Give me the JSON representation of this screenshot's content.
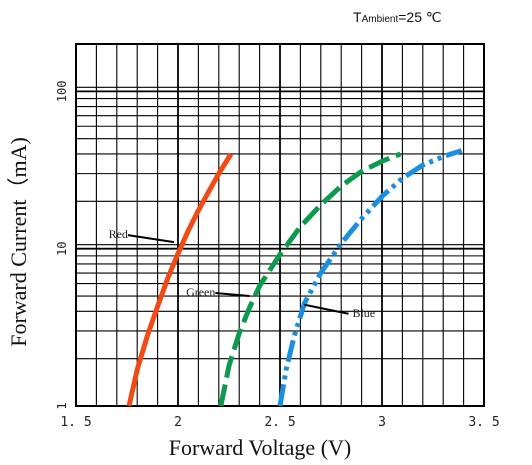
{
  "chart_data": {
    "type": "line",
    "condition": {
      "prefix": "T",
      "sub": "Ambient",
      "rest": "=25 ℃"
    },
    "xlabel": "Forward Voltage (V)",
    "ylabel": "Forward Current（mA)",
    "xlim": [
      1.5,
      3.5
    ],
    "ylim": [
      1,
      200
    ],
    "yscale": "log",
    "grid": true,
    "x_ticks": [
      {
        "value": 1.5,
        "label": "1. 5"
      },
      {
        "value": 2.0,
        "label": "2"
      },
      {
        "value": 2.5,
        "label": "2. 5"
      },
      {
        "value": 3.0,
        "label": "3"
      },
      {
        "value": 3.5,
        "label": "3. 5"
      }
    ],
    "y_ticks": [
      {
        "value": 1,
        "label": "1"
      },
      {
        "value": 10,
        "label": "10"
      },
      {
        "value": 100,
        "label": "100"
      }
    ],
    "series": [
      {
        "name": "Red",
        "color": "#f04a16",
        "dash": "solid",
        "x": [
          1.76,
          1.8,
          1.85,
          1.9,
          1.95,
          2.0,
          2.05,
          2.1,
          2.15,
          2.2,
          2.26
        ],
        "y": [
          1.0,
          1.7,
          2.8,
          4.3,
          6.5,
          9.3,
          13.0,
          17.5,
          23.0,
          30.0,
          40.0
        ]
      },
      {
        "name": "Green",
        "color": "#0e9a4e",
        "dash": "dashed",
        "x": [
          2.21,
          2.25,
          2.3,
          2.35,
          2.4,
          2.5,
          2.6,
          2.7,
          2.8,
          2.9,
          3.0,
          3.09
        ],
        "y": [
          1.0,
          1.8,
          2.9,
          4.2,
          5.8,
          9.2,
          13.8,
          19.0,
          25.0,
          31.0,
          36.0,
          40.0
        ]
      },
      {
        "name": "Blue",
        "color": "#1a8fe0",
        "dash": "dashdot",
        "x": [
          2.5,
          2.53,
          2.57,
          2.62,
          2.7,
          2.8,
          2.9,
          3.0,
          3.1,
          3.2,
          3.3,
          3.39
        ],
        "y": [
          1.0,
          1.7,
          2.8,
          4.5,
          7.0,
          10.8,
          15.5,
          21.5,
          28.0,
          34.0,
          38.5,
          42.0
        ]
      }
    ],
    "annotations": [
      {
        "label": "Red",
        "series": "Red",
        "at": [
          1.98,
          11.0
        ]
      },
      {
        "label": "Green",
        "series": "Green",
        "at": [
          2.35,
          5.0
        ]
      },
      {
        "label": "Blue",
        "series": "Blue",
        "at": [
          2.62,
          4.4
        ]
      }
    ]
  }
}
